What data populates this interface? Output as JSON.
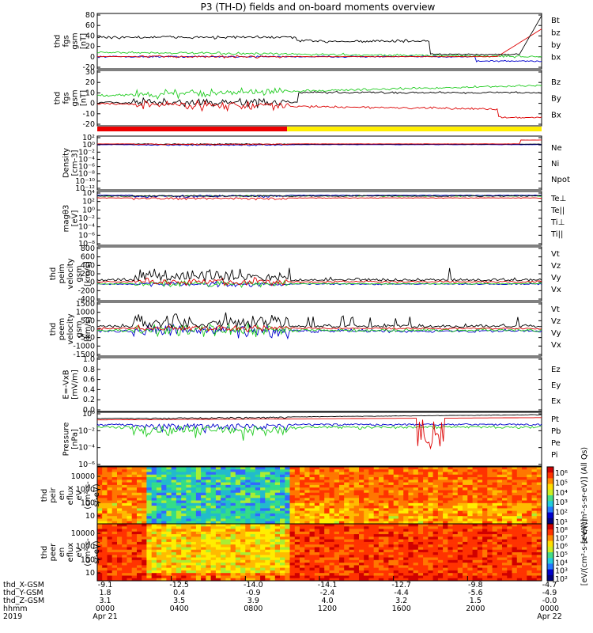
{
  "title": "P3 (TH-D) fields and on-board moments overview",
  "date": {
    "year": "2019",
    "start": "Apr 21",
    "end": "Apr 22"
  },
  "chart_data": [
    {
      "type": "line",
      "ylabel": [
        "thd",
        "fgs",
        "gsm",
        "[nT]"
      ],
      "ylim": [
        -20,
        80
      ],
      "yticks": [
        "80",
        "60",
        "40",
        "20",
        "0",
        "-20"
      ],
      "series": [
        {
          "name": "Bt",
          "color": "#000000"
        },
        {
          "name": "bz",
          "color": "#dd0000"
        },
        {
          "name": "by",
          "color": "#22cc22"
        },
        {
          "name": "bx",
          "color": "#0000cc"
        }
      ]
    },
    {
      "type": "line",
      "ylabel": [
        "thd",
        "fgs",
        "gsm",
        "[nT]"
      ],
      "ylim": [
        -25,
        30
      ],
      "yticks": [
        "30",
        "20",
        "10",
        "0",
        "-10",
        "-20"
      ],
      "series": [
        {
          "name": "Bz",
          "color": "#dd0000"
        },
        {
          "name": "By",
          "color": "#22cc22"
        },
        {
          "name": "Bx",
          "color": "#000000"
        }
      ]
    },
    {
      "type": "line",
      "ylabel": [
        "Density",
        "[cm-3]"
      ],
      "log": true,
      "yticks": [
        "10²",
        "10⁰",
        "10⁻²",
        "10⁻⁴",
        "10⁻⁶",
        "10⁻⁸",
        "10⁻¹⁰",
        "10⁻¹²"
      ],
      "series": [
        {
          "name": "Ne",
          "color": "#dd0000"
        },
        {
          "name": "Ni",
          "color": "#000000"
        },
        {
          "name": "Npot",
          "color": "#0000cc"
        }
      ]
    },
    {
      "type": "line",
      "ylabel": [
        "magθ3",
        "[eV]"
      ],
      "log": true,
      "yticks": [
        "10⁴",
        "10²",
        "10⁰",
        "10⁻²",
        "10⁻⁴",
        "10⁻⁶",
        "10⁻⁸"
      ],
      "series": [
        {
          "name": "Te⊥",
          "color": "#dd0000"
        },
        {
          "name": "Te||",
          "color": "#000000"
        },
        {
          "name": "Ti⊥",
          "color": "#0000cc"
        },
        {
          "name": "Ti||",
          "color": "#22cc22"
        }
      ]
    },
    {
      "type": "line",
      "ylabel": [
        "thd",
        "peim",
        "velocity",
        "gsm",
        "[km/s]"
      ],
      "ylim": [
        -400,
        800
      ],
      "yticks": [
        "800",
        "600",
        "400",
        "200",
        "0",
        "-200",
        "-400"
      ],
      "series": [
        {
          "name": "Vt",
          "color": "#000000"
        },
        {
          "name": "Vz",
          "color": "#dd0000"
        },
        {
          "name": "Vy",
          "color": "#22cc22"
        },
        {
          "name": "Vx",
          "color": "#0000cc"
        }
      ]
    },
    {
      "type": "line",
      "ylabel": [
        "thd",
        "peem",
        "velocity",
        "gsm",
        "[km/s]"
      ],
      "ylim": [
        -1500,
        1500
      ],
      "yticks": [
        "1500",
        "1000",
        "500",
        "0",
        "-500",
        "-1000",
        "-1500"
      ],
      "series": [
        {
          "name": "Vt",
          "color": "#000000"
        },
        {
          "name": "Vz",
          "color": "#dd0000"
        },
        {
          "name": "Vy",
          "color": "#22cc22"
        },
        {
          "name": "Vx",
          "color": "#0000cc"
        }
      ]
    },
    {
      "type": "line",
      "ylabel": [
        "E=-VxB",
        "[mV/m]"
      ],
      "ylim": [
        0,
        1
      ],
      "yticks": [
        "1.0",
        "0.8",
        "0.6",
        "0.4",
        "0.2",
        "0.0"
      ],
      "series": [
        {
          "name": "Ez",
          "color": "#dd0000"
        },
        {
          "name": "Ey",
          "color": "#22cc22"
        },
        {
          "name": "Ex",
          "color": "#0000cc"
        }
      ]
    },
    {
      "type": "line",
      "ylabel": [
        "Pressure",
        "[nPa]"
      ],
      "log": true,
      "yticks": [
        "10⁰",
        "10⁻²",
        "10⁻⁴",
        "10⁻⁶"
      ],
      "series": [
        {
          "name": "Pt",
          "color": "#000000"
        },
        {
          "name": "Pb",
          "color": "#dd0000"
        },
        {
          "name": "Pe",
          "color": "#22cc22"
        },
        {
          "name": "Pi",
          "color": "#0000cc"
        }
      ]
    },
    {
      "type": "heatmap",
      "ylabel": [
        "thd",
        "peir",
        "en",
        "eflux",
        "eV",
        "(cm²-s-",
        "sr-eV)"
      ],
      "yticks": [
        "10000",
        "1000",
        "100",
        "10"
      ],
      "colorbar": {
        "ticks": [
          "10⁶",
          "10⁵",
          "10⁴",
          "10³",
          "10²",
          "10¹"
        ],
        "label": "[eV/(cm²-s-sr-eV)] (All Qs)"
      }
    },
    {
      "type": "heatmap",
      "ylabel": [
        "thd",
        "peer",
        "en",
        "eflux",
        "eV",
        "(cm²-s-",
        "sr-eV)"
      ],
      "yticks": [
        "10000",
        "1000",
        "100",
        "10"
      ],
      "colorbar": {
        "ticks": [
          "10⁸",
          "10⁷",
          "10⁶",
          "10⁵",
          "10⁴",
          "10³",
          "10²"
        ],
        "label": "[eV/(cm²-s-sr-eV)]"
      }
    }
  ],
  "time_axis": {
    "row_labels": [
      "thd_X-GSM",
      "thd_Y-GSM",
      "thd_Z-GSM",
      "hhmm",
      "2019"
    ],
    "columns": [
      {
        "x": "-9.1",
        "y": "1.8",
        "z": "3.1",
        "hhmm": "0000",
        "date": "Apr 21"
      },
      {
        "x": "-12.5",
        "y": "0.4",
        "z": "3.5",
        "hhmm": "0400",
        "date": ""
      },
      {
        "x": "-14.0",
        "y": "-0.9",
        "z": "3.9",
        "hhmm": "0800",
        "date": ""
      },
      {
        "x": "-14.1",
        "y": "-2.4",
        "z": "4.0",
        "hhmm": "1200",
        "date": ""
      },
      {
        "x": "-12.7",
        "y": "-4.4",
        "z": "3.2",
        "hhmm": "1600",
        "date": ""
      },
      {
        "x": "-9.8",
        "y": "-5.6",
        "z": "1.5",
        "hhmm": "2000",
        "date": ""
      },
      {
        "x": "-4.7",
        "y": "-4.9",
        "z": "-0.0",
        "hhmm": "0000",
        "date": "Apr 22"
      }
    ]
  }
}
